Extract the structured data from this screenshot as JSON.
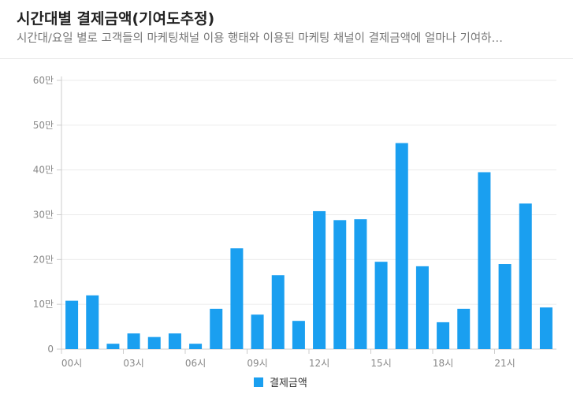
{
  "header": {
    "title": "시간대별 결제금액(기여도추정)",
    "subtitle": "시간대/요일 별로 고객들의 마케팅채널 이용 행태와 이용된 마케팅 채널이 결제금액에 얼마나 기여하…"
  },
  "colors": {
    "bar": "#1a9ff0",
    "grid": "#ebebeb",
    "axis": "#cccccc"
  },
  "chart_data": {
    "type": "bar",
    "categories": [
      "00시",
      "01시",
      "02시",
      "03시",
      "04시",
      "05시",
      "06시",
      "07시",
      "08시",
      "09시",
      "10시",
      "11시",
      "12시",
      "13시",
      "14시",
      "15시",
      "16시",
      "17시",
      "18시",
      "19시",
      "20시",
      "21시",
      "22시",
      "23시"
    ],
    "x_tick_labels": [
      "00시",
      "03시",
      "06시",
      "09시",
      "12시",
      "15시",
      "18시",
      "21시"
    ],
    "x_tick_indices": [
      0,
      3,
      6,
      9,
      12,
      15,
      18,
      21
    ],
    "y_ticks": [
      0,
      100000,
      200000,
      300000,
      400000,
      500000,
      600000
    ],
    "y_tick_labels": [
      "0",
      "10만",
      "20만",
      "30만",
      "40만",
      "50만",
      "60만"
    ],
    "ylim": [
      0,
      600000
    ],
    "series": [
      {
        "name": "결제금액",
        "values": [
          108000,
          120000,
          12000,
          35000,
          27000,
          35000,
          12000,
          90000,
          225000,
          77000,
          165000,
          63000,
          308000,
          288000,
          290000,
          195000,
          460000,
          185000,
          60000,
          90000,
          395000,
          190000,
          325000,
          93000
        ]
      }
    ],
    "grid": true,
    "legend": "bottom"
  }
}
